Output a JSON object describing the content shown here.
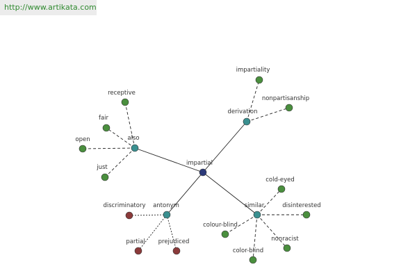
{
  "header": {
    "url": "http://www.artikata.com"
  },
  "nodes": [
    {
      "label": "impartial"
    },
    {
      "label": "also"
    },
    {
      "label": "derivation"
    },
    {
      "label": "antonym"
    },
    {
      "label": "similar"
    },
    {
      "label": "receptive"
    },
    {
      "label": "fair"
    },
    {
      "label": "open"
    },
    {
      "label": "just"
    },
    {
      "label": "impartiality"
    },
    {
      "label": "nonpartisanship"
    },
    {
      "label": "cold-eyed"
    },
    {
      "label": "disinterested"
    },
    {
      "label": "colour-blind"
    },
    {
      "label": "color-blind"
    },
    {
      "label": "nonracist"
    },
    {
      "label": "discriminatory"
    },
    {
      "label": "partial"
    },
    {
      "label": "prejudiced"
    }
  ]
}
